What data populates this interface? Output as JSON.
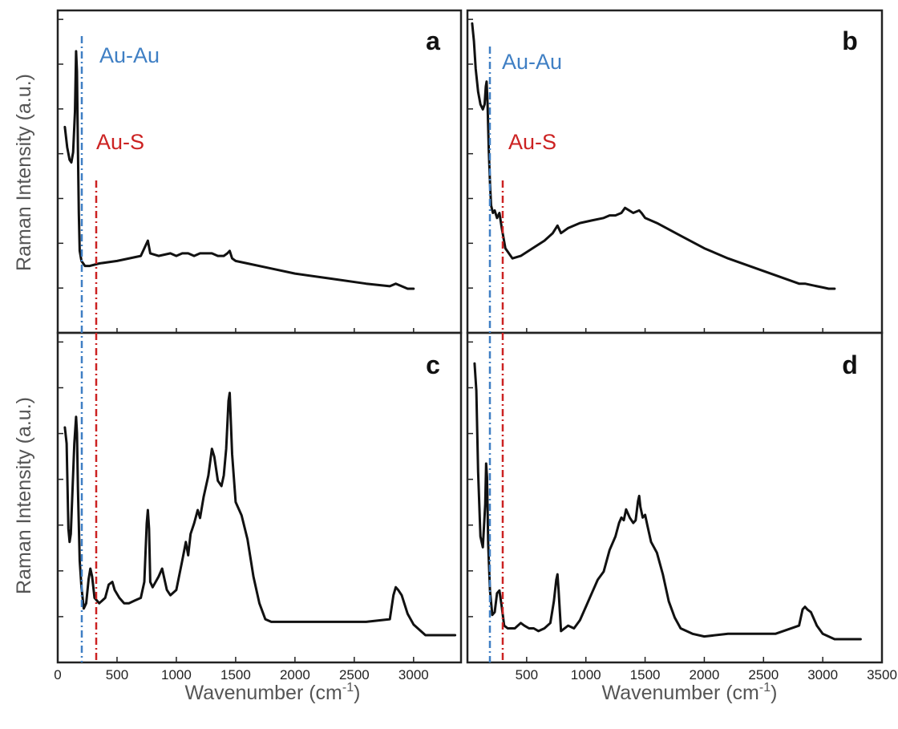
{
  "figure": {
    "y_label": "Raman Intensity (a.u.)",
    "x_label": "Wavenumber (cm",
    "x_label_sup": "-1",
    "x_label_end": ")"
  },
  "colors": {
    "au_au": "#3f7fc4",
    "au_s": "#cc2222",
    "spectrum": "#111111"
  },
  "chart_data": [
    {
      "panel": "a",
      "type": "line",
      "xlabel": "",
      "ylabel": "Raman Intensity (a.u.)",
      "xlim": [
        0,
        3400
      ],
      "ylim": [
        0,
        1
      ],
      "annotations": [
        {
          "text": "Au-Au",
          "x": 155,
          "color": "#3f7fc4"
        },
        {
          "text": "Au-S",
          "x": 270,
          "color": "#cc2222"
        }
      ],
      "series": [
        {
          "x": [
            60,
            80,
            100,
            115,
            130,
            145,
            155,
            162,
            170,
            178,
            185,
            200,
            230,
            270,
            350,
            500,
            700,
            740,
            760,
            780,
            850,
            950,
            1000,
            1050,
            1100,
            1150,
            1200,
            1250,
            1300,
            1350,
            1400,
            1430,
            1450,
            1470,
            1500,
            1600,
            1800,
            2000,
            2300,
            2600,
            2800,
            2850,
            2900,
            2950,
            3000
          ],
          "y": [
            0.64,
            0.56,
            0.51,
            0.5,
            0.54,
            0.7,
            0.94,
            0.86,
            0.55,
            0.3,
            0.15,
            0.11,
            0.09,
            0.09,
            0.1,
            0.11,
            0.13,
            0.17,
            0.19,
            0.14,
            0.13,
            0.14,
            0.13,
            0.14,
            0.14,
            0.13,
            0.14,
            0.14,
            0.14,
            0.13,
            0.13,
            0.14,
            0.15,
            0.12,
            0.11,
            0.1,
            0.08,
            0.06,
            0.04,
            0.02,
            0.01,
            0.02,
            0.01,
            0.0,
            0.0
          ]
        }
      ]
    },
    {
      "panel": "b",
      "type": "line",
      "xlabel": "",
      "ylabel": "",
      "xlim": [
        0,
        3500
      ],
      "ylim": [
        0,
        1
      ],
      "annotations": [
        {
          "text": "Au-Au",
          "x": 155,
          "color": "#3f7fc4"
        },
        {
          "text": "Au-S",
          "x": 270,
          "color": "#cc2222"
        }
      ],
      "series": [
        {
          "x": [
            40,
            55,
            70,
            90,
            110,
            130,
            145,
            155,
            162,
            170,
            180,
            190,
            200,
            215,
            230,
            250,
            270,
            290,
            320,
            380,
            450,
            550,
            650,
            720,
            760,
            790,
            850,
            950,
            1050,
            1150,
            1200,
            1250,
            1300,
            1330,
            1400,
            1450,
            1470,
            1500,
            1600,
            1800,
            2000,
            2200,
            2500,
            2800,
            2850,
            2900,
            2950,
            3000,
            3050,
            3100
          ],
          "y": [
            1.05,
            0.98,
            0.87,
            0.78,
            0.73,
            0.71,
            0.73,
            0.8,
            0.82,
            0.73,
            0.55,
            0.42,
            0.33,
            0.3,
            0.31,
            0.28,
            0.3,
            0.24,
            0.16,
            0.12,
            0.13,
            0.16,
            0.19,
            0.22,
            0.25,
            0.22,
            0.24,
            0.26,
            0.27,
            0.28,
            0.29,
            0.29,
            0.3,
            0.32,
            0.3,
            0.31,
            0.3,
            0.28,
            0.26,
            0.21,
            0.16,
            0.12,
            0.07,
            0.02,
            0.02,
            0.015,
            0.01,
            0.005,
            0.0,
            0.0
          ]
        }
      ]
    },
    {
      "panel": "c",
      "type": "line",
      "xlabel": "Wavenumber (cm-1)",
      "ylabel": "Raman Intensity (a.u.)",
      "xlim": [
        0,
        3400
      ],
      "ylim": [
        0,
        1
      ],
      "ticks_x": [
        0,
        500,
        1000,
        1500,
        2000,
        2500,
        3000
      ],
      "series": [
        {
          "x": [
            60,
            75,
            90,
            100,
            110,
            125,
            140,
            155,
            162,
            170,
            185,
            200,
            220,
            240,
            260,
            275,
            290,
            310,
            350,
            400,
            430,
            460,
            480,
            520,
            560,
            600,
            650,
            700,
            730,
            750,
            760,
            770,
            780,
            800,
            850,
            880,
            920,
            950,
            1000,
            1050,
            1080,
            1100,
            1120,
            1150,
            1180,
            1200,
            1230,
            1270,
            1300,
            1320,
            1350,
            1380,
            1400,
            1420,
            1440,
            1450,
            1470,
            1500,
            1550,
            1600,
            1650,
            1700,
            1750,
            1800,
            2000,
            2200,
            2400,
            2600,
            2800,
            2830,
            2850,
            2870,
            2900,
            2950,
            3000,
            3100,
            3200,
            3350
          ],
          "y": [
            0.78,
            0.72,
            0.4,
            0.35,
            0.38,
            0.55,
            0.72,
            0.82,
            0.76,
            0.55,
            0.28,
            0.18,
            0.1,
            0.12,
            0.21,
            0.25,
            0.22,
            0.14,
            0.12,
            0.14,
            0.19,
            0.2,
            0.17,
            0.14,
            0.12,
            0.12,
            0.13,
            0.14,
            0.2,
            0.42,
            0.47,
            0.4,
            0.2,
            0.18,
            0.22,
            0.25,
            0.17,
            0.15,
            0.17,
            0.28,
            0.35,
            0.3,
            0.38,
            0.42,
            0.47,
            0.44,
            0.52,
            0.6,
            0.7,
            0.67,
            0.58,
            0.56,
            0.6,
            0.7,
            0.88,
            0.91,
            0.68,
            0.5,
            0.45,
            0.36,
            0.22,
            0.12,
            0.06,
            0.05,
            0.05,
            0.05,
            0.05,
            0.05,
            0.06,
            0.15,
            0.18,
            0.17,
            0.15,
            0.08,
            0.04,
            0.0,
            0.0,
            0.0
          ]
        }
      ]
    },
    {
      "panel": "d",
      "type": "line",
      "xlabel": "Wavenumber (cm-1)",
      "ylabel": "",
      "xlim": [
        0,
        3500
      ],
      "ylim": [
        0,
        1
      ],
      "ticks_x": [
        500,
        1000,
        1500,
        2000,
        2500,
        3000,
        3500
      ],
      "series": [
        {
          "x": [
            60,
            75,
            90,
            110,
            130,
            150,
            158,
            165,
            175,
            190,
            210,
            230,
            250,
            270,
            290,
            310,
            340,
            400,
            450,
            480,
            520,
            560,
            600,
            650,
            700,
            730,
            750,
            760,
            770,
            790,
            850,
            900,
            950,
            1000,
            1050,
            1100,
            1150,
            1200,
            1250,
            1280,
            1300,
            1320,
            1340,
            1370,
            1400,
            1420,
            1440,
            1450,
            1460,
            1480,
            1500,
            1520,
            1550,
            1600,
            1650,
            1700,
            1750,
            1800,
            1900,
            2000,
            2200,
            2400,
            2600,
            2800,
            2830,
            2850,
            2870,
            2900,
            2950,
            3000,
            3100,
            3200,
            3320
          ],
          "y": [
            1.02,
            0.92,
            0.62,
            0.38,
            0.34,
            0.5,
            0.65,
            0.6,
            0.35,
            0.18,
            0.09,
            0.1,
            0.17,
            0.18,
            0.12,
            0.05,
            0.04,
            0.04,
            0.06,
            0.05,
            0.04,
            0.04,
            0.03,
            0.04,
            0.06,
            0.14,
            0.22,
            0.24,
            0.18,
            0.03,
            0.05,
            0.04,
            0.07,
            0.12,
            0.17,
            0.22,
            0.25,
            0.33,
            0.38,
            0.43,
            0.45,
            0.44,
            0.48,
            0.45,
            0.43,
            0.44,
            0.51,
            0.53,
            0.49,
            0.45,
            0.46,
            0.42,
            0.36,
            0.32,
            0.24,
            0.14,
            0.08,
            0.04,
            0.02,
            0.01,
            0.02,
            0.02,
            0.02,
            0.05,
            0.11,
            0.12,
            0.11,
            0.1,
            0.05,
            0.02,
            0.0,
            0.0,
            0.0
          ]
        }
      ]
    }
  ]
}
